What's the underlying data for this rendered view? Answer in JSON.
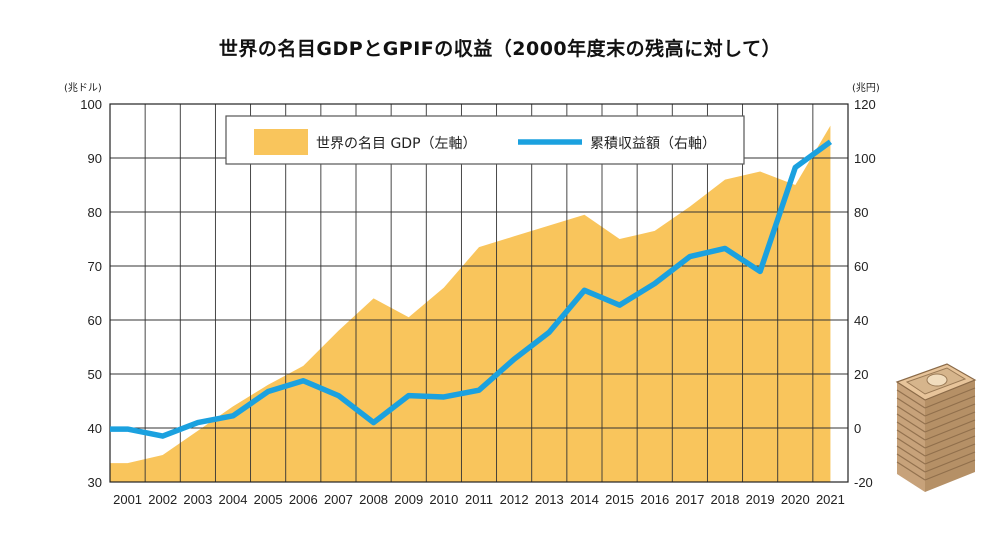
{
  "chart_data": {
    "type": "area",
    "title": "世界の名目GDPとGPIFの収益（2000年度末の残高に対して）",
    "x": [
      "2001",
      "2002",
      "2003",
      "2004",
      "2005",
      "2006",
      "2007",
      "2008",
      "2009",
      "2010",
      "2011",
      "2012",
      "2013",
      "2014",
      "2015",
      "2016",
      "2017",
      "2018",
      "2019",
      "2020",
      "2021"
    ],
    "left_axis": {
      "unit": "(兆ドル)",
      "ylim": [
        30,
        100
      ],
      "ticks": [
        "30",
        "40",
        "50",
        "60",
        "70",
        "80",
        "90",
        "100"
      ]
    },
    "right_axis": {
      "unit": "(兆円)",
      "ylim": [
        -20,
        120
      ],
      "ticks": [
        "-20",
        "0",
        "20",
        "40",
        "60",
        "80",
        "100",
        "120"
      ]
    },
    "grid": true,
    "legend_position": "top",
    "series": [
      {
        "name": "世界の名目 GDP（左軸）",
        "type": "area",
        "axis": "left",
        "color": "#F9C55C",
        "values": [
          33.5,
          35,
          39.5,
          44,
          48,
          51.5,
          58,
          64,
          60.5,
          66,
          73.5,
          75.5,
          77.5,
          79.5,
          75,
          76.5,
          81,
          86,
          87.5,
          85,
          96
        ]
      },
      {
        "name": "累積収益額（右軸）",
        "type": "line",
        "axis": "right",
        "color": "#1BA1DF",
        "values": [
          -0.4,
          -3,
          2,
          4.5,
          13.5,
          17.5,
          12,
          2,
          12,
          11.5,
          14,
          25.5,
          35.5,
          51,
          45.5,
          53.5,
          63.5,
          66.5,
          58,
          96.5,
          106
        ]
      }
    ]
  }
}
